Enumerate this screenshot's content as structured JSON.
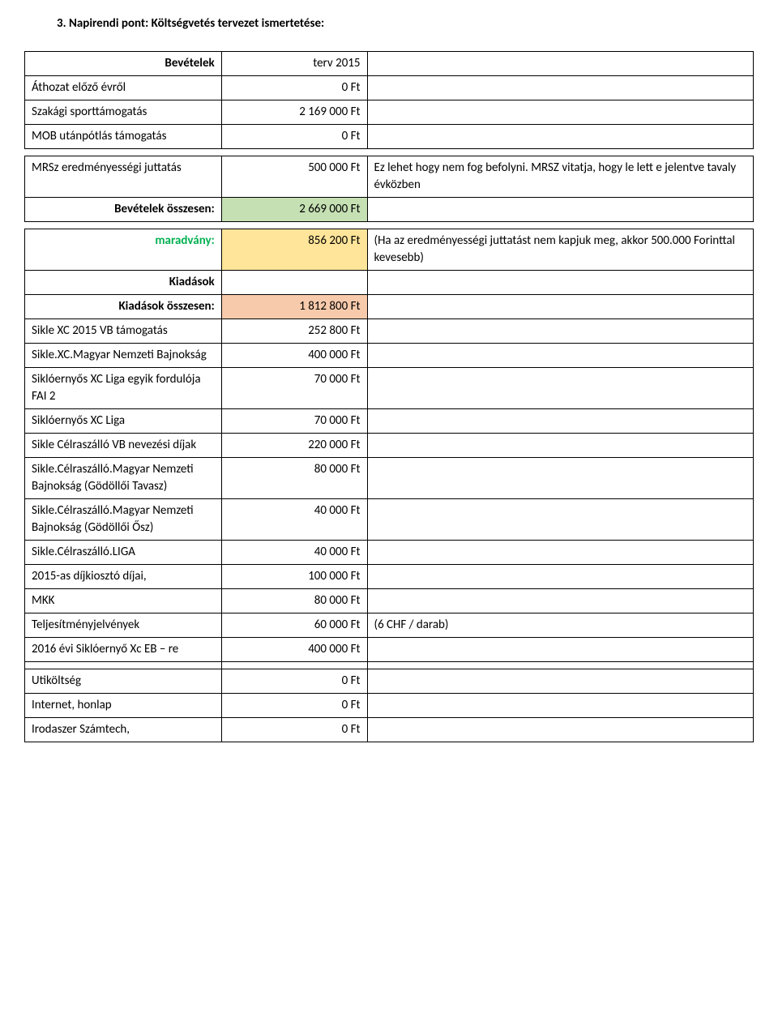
{
  "heading": "3.  Napirendi pont:   Költségvetés tervezet ismertetése:",
  "rows": [
    {
      "c1": "Bevételek",
      "c1_class": "bold right",
      "c2": "terv 2015",
      "c2_class": "center",
      "c3": ""
    },
    {
      "c1": "Áthozat előző évről",
      "c2": "0 Ft",
      "c3": ""
    },
    {
      "c1": "Szakági sporttámogatás",
      "c2": "2 169 000 Ft",
      "c3": ""
    },
    {
      "c1": "MOB utánpótlás támogatás",
      "c2": "0 Ft",
      "c3": ""
    },
    {
      "spacer": true
    },
    {
      "c1": "MRSz eredményességi juttatás",
      "c2": "500 000 Ft",
      "c3": "Ez lehet hogy nem fog befolyni. MRSZ vitatja, hogy le lett e jelentve tavaly évközben"
    },
    {
      "c1": "Bevételek összesen:",
      "c1_class": "bold right",
      "c2": "2 669 000 Ft",
      "c2_class": "green-fill",
      "c3": ""
    },
    {
      "spacer": true
    },
    {
      "c1": "maradvány:",
      "c1_class": "green-text right",
      "c2": "856 200 Ft",
      "c2_class": "yellow-fill",
      "c3": "(Ha az eredményességi juttatást nem kapjuk meg, akkor 500.000 Forinttal kevesebb)"
    },
    {
      "c1": "Kiadások",
      "c1_class": "bold right",
      "c2": "",
      "c3": ""
    },
    {
      "c1": "Kiadások összesen:",
      "c1_class": "bold right",
      "c2": "1 812 800 Ft",
      "c2_class": "pink-fill",
      "c3": ""
    },
    {
      "c1": "Sikle XC 2015 VB támogatás",
      "c2": "252 800 Ft",
      "c3": ""
    },
    {
      "c1": "Sikle.XC.Magyar Nemzeti Bajnokság",
      "c2": "400 000 Ft",
      "c3": ""
    },
    {
      "c1": "Siklóernyős XC Liga egyik fordulója FAI 2",
      "c2": "70 000 Ft",
      "c3": ""
    },
    {
      "c1": "Siklóernyős XC Liga",
      "c2": "70 000 Ft",
      "c3": ""
    },
    {
      "c1": "Sikle Célraszálló VB nevezési díjak",
      "c2": "220 000 Ft",
      "c3": ""
    },
    {
      "c1": "Sikle.Célraszálló.Magyar Nemzeti Bajnokság (Gödöllői Tavasz)",
      "c2": "80 000 Ft",
      "c3": ""
    },
    {
      "c1": "Sikle.Célraszálló.Magyar Nemzeti Bajnokság (Gödöllői Ősz)",
      "c2": "40 000 Ft",
      "c3": ""
    },
    {
      "c1": "Sikle.Célraszálló.LIGA",
      "c2": "40 000 Ft",
      "c3": ""
    },
    {
      "c1": "2015-as díjkiosztó díjai,",
      "c2": "100 000 Ft",
      "c3": ""
    },
    {
      "c1": "MKK",
      "c2": "80 000 Ft",
      "c3": ""
    },
    {
      "c1": "Teljesítményjelvények",
      "c2": "60 000 Ft",
      "c3": "(6 CHF / darab)"
    },
    {
      "c1": "2016 évi Siklóernyő Xc EB – re",
      "c2": "400 000 Ft",
      "c3": ""
    },
    {
      "c1": "",
      "c2": "",
      "c3": ""
    },
    {
      "c1": "Utiköltség",
      "c2": "0 Ft",
      "c3": ""
    },
    {
      "c1": "Internet, honlap",
      "c2": "0 Ft",
      "c3": ""
    },
    {
      "c1": "Irodaszer Számtech,",
      "c2": "0 Ft",
      "c3": ""
    }
  ]
}
